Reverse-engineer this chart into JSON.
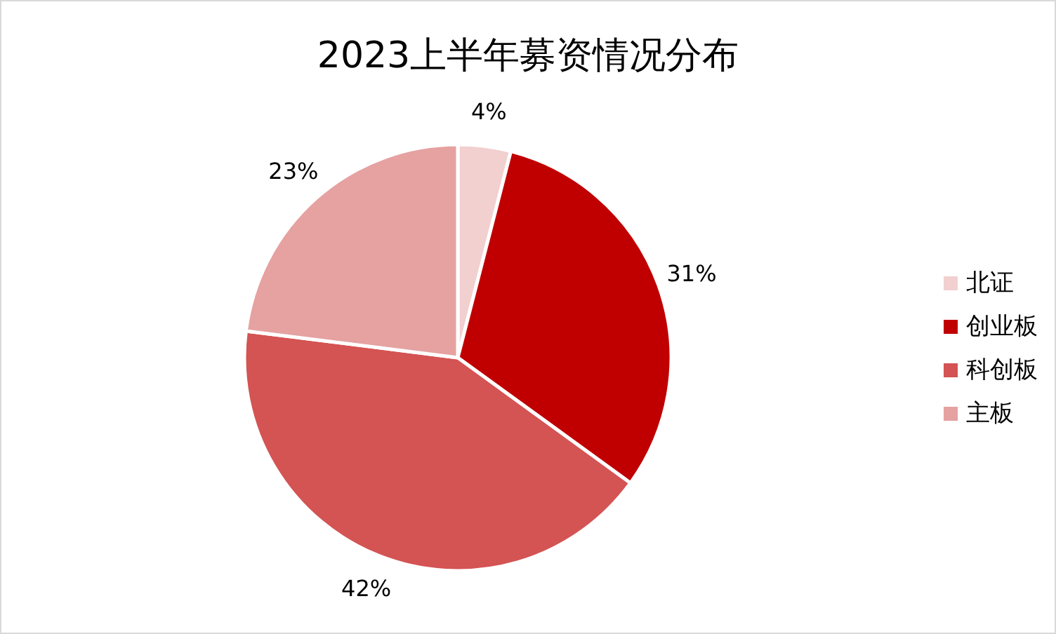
{
  "chart_data": {
    "type": "pie",
    "title": "2023上半年募资情况分布",
    "categories": [
      "北证",
      "创业板",
      "科创板",
      "主板"
    ],
    "values": [
      4,
      31,
      42,
      23
    ],
    "colors": [
      "#f2d0d0",
      "#c00000",
      "#d45353",
      "#e6a1a1"
    ],
    "value_labels": [
      "4%",
      "31%",
      "42%",
      "23%"
    ],
    "legend": "right"
  }
}
